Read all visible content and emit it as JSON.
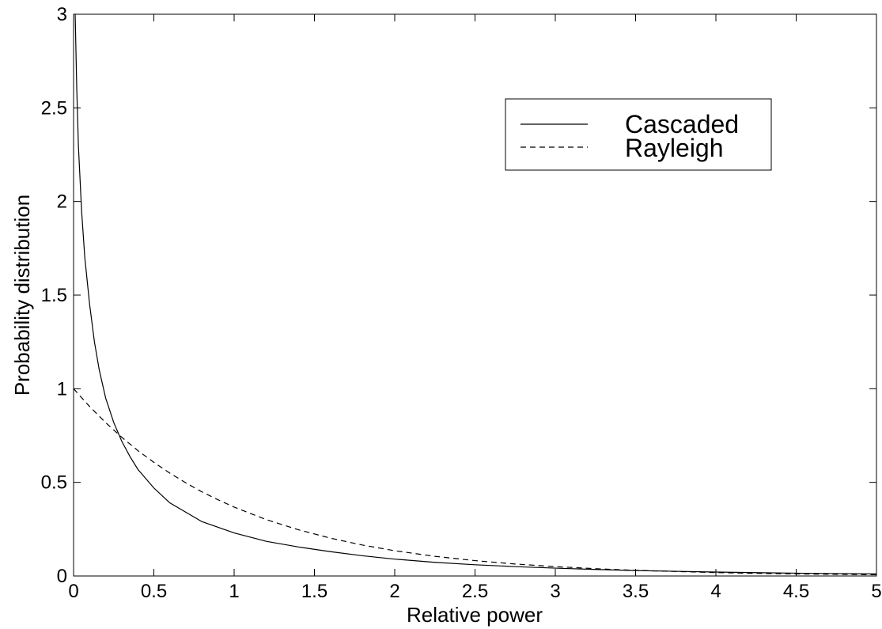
{
  "chart_data": {
    "type": "line",
    "title": "",
    "xlabel": "Relative power",
    "ylabel": "Probability distribution",
    "xlim": [
      0,
      5
    ],
    "ylim": [
      0,
      3
    ],
    "xticks": [
      0,
      0.5,
      1,
      1.5,
      2,
      2.5,
      3,
      3.5,
      4,
      4.5,
      5
    ],
    "yticks": [
      0,
      0.5,
      1,
      1.5,
      2,
      2.5,
      3
    ],
    "xtick_labels": [
      "0",
      "0.5",
      "1",
      "1.5",
      "2",
      "2.5",
      "3",
      "3.5",
      "4",
      "4.5",
      "5"
    ],
    "ytick_labels": [
      "0",
      "0.5",
      "1",
      "1.5",
      "2",
      "2.5",
      "3"
    ],
    "grid": false,
    "legend_position": "top-right",
    "series": [
      {
        "name": "Cascaded",
        "style": "solid",
        "color": "#000000",
        "x": [
          0.01,
          0.02,
          0.03,
          0.05,
          0.07,
          0.1,
          0.13,
          0.16,
          0.2,
          0.25,
          0.3,
          0.35,
          0.4,
          0.5,
          0.6,
          0.7,
          0.8,
          0.9,
          1.0,
          1.2,
          1.4,
          1.6,
          1.8,
          2.0,
          2.25,
          2.5,
          2.75,
          3.0,
          3.25,
          3.5,
          3.75,
          4.0,
          4.25,
          4.5,
          4.75,
          5.0
        ],
        "values": [
          3.0,
          2.6,
          2.3,
          1.95,
          1.7,
          1.45,
          1.25,
          1.1,
          0.95,
          0.82,
          0.72,
          0.64,
          0.57,
          0.47,
          0.39,
          0.34,
          0.29,
          0.26,
          0.23,
          0.185,
          0.155,
          0.13,
          0.108,
          0.09,
          0.073,
          0.06,
          0.05,
          0.042,
          0.035,
          0.029,
          0.025,
          0.021,
          0.018,
          0.015,
          0.013,
          0.011
        ]
      },
      {
        "name": "Rayleigh",
        "style": "dashed",
        "color": "#000000",
        "x": [
          0,
          0.1,
          0.2,
          0.3,
          0.4,
          0.5,
          0.6,
          0.7,
          0.8,
          0.9,
          1.0,
          1.2,
          1.4,
          1.6,
          1.8,
          2.0,
          2.25,
          2.5,
          2.75,
          3.0,
          3.25,
          3.5,
          3.75,
          4.0,
          4.25,
          4.5,
          4.75,
          5.0
        ],
        "values": [
          1.0,
          0.905,
          0.819,
          0.741,
          0.67,
          0.607,
          0.549,
          0.497,
          0.449,
          0.407,
          0.368,
          0.301,
          0.247,
          0.202,
          0.165,
          0.135,
          0.105,
          0.082,
          0.064,
          0.05,
          0.039,
          0.03,
          0.024,
          0.018,
          0.014,
          0.011,
          0.009,
          0.007
        ]
      }
    ]
  }
}
